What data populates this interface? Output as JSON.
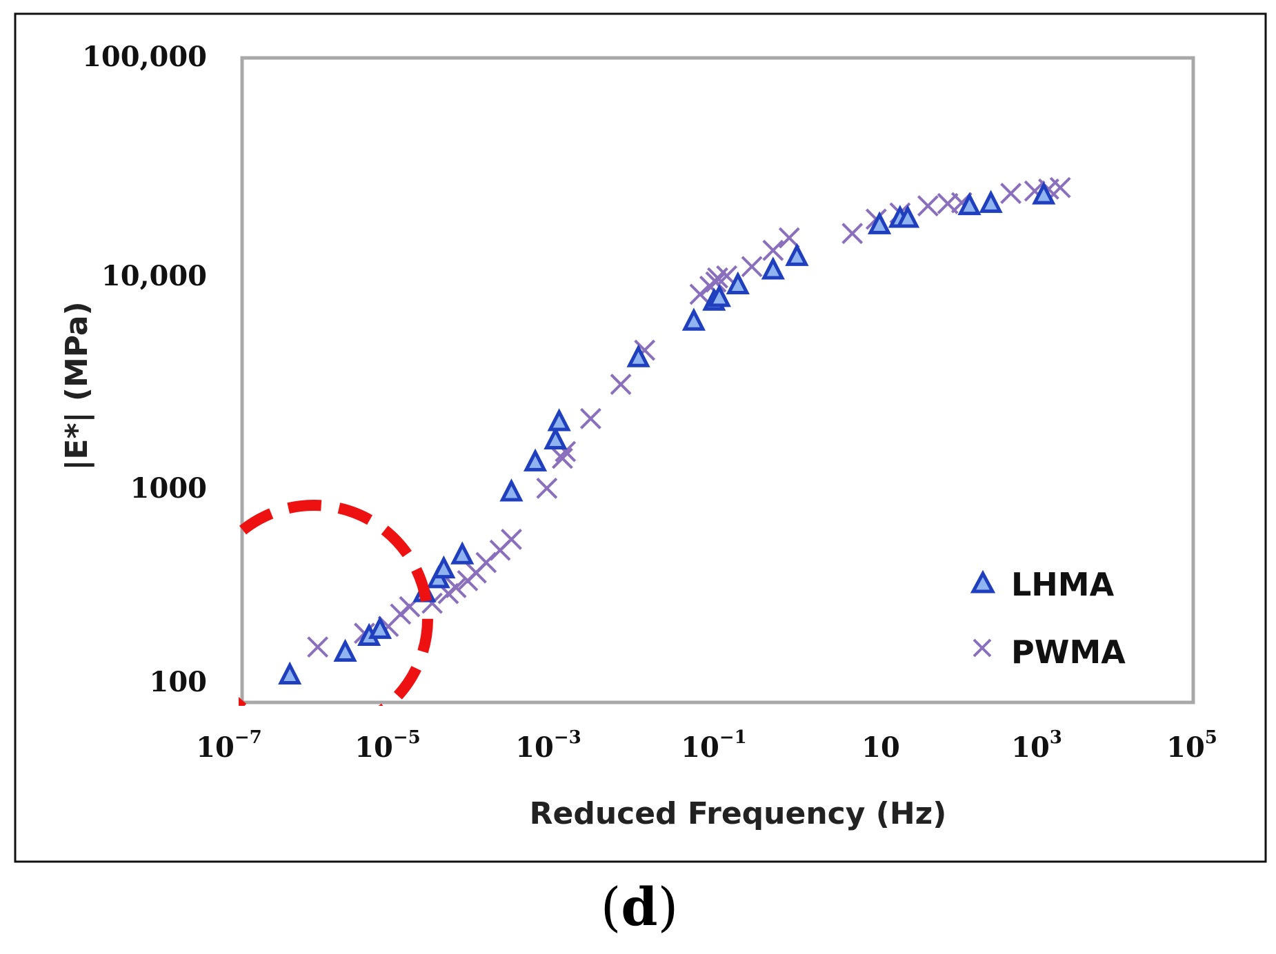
{
  "chart_data": {
    "type": "scatter",
    "title": "",
    "xlabel": "Reduced Frequency (Hz)",
    "ylabel": "|E*| (MPa)",
    "xscale": "log",
    "yscale": "log",
    "xlim": [
      1e-07,
      100000
    ],
    "ylim": [
      85,
      100000
    ],
    "grid": false,
    "legend_position": "bottom-right",
    "x_ticks": [
      {
        "value": 1e-07,
        "base": "10",
        "exp": "−7"
      },
      {
        "value": 1e-05,
        "base": "10",
        "exp": "−5"
      },
      {
        "value": 0.001,
        "base": "10",
        "exp": "−3"
      },
      {
        "value": 0.1,
        "base": "10",
        "exp": "−1"
      },
      {
        "value": 10,
        "base": "10",
        "exp": ""
      },
      {
        "value": 1000,
        "base": "10",
        "exp": "3"
      },
      {
        "value": 100000,
        "base": "10",
        "exp": "5"
      }
    ],
    "y_ticks": [
      {
        "value": 100,
        "label": "100"
      },
      {
        "value": 1000,
        "label": "1000"
      },
      {
        "value": 10000,
        "label": "10,000"
      },
      {
        "value": 100000,
        "label": "100,000"
      }
    ],
    "series": [
      {
        "name": "LHMA",
        "marker": "triangle",
        "color": "#1f3fbf",
        "points": [
          [
            4e-07,
            125
          ],
          [
            2e-06,
            160
          ],
          [
            4e-06,
            190
          ],
          [
            5.5e-06,
            205
          ],
          [
            2e-05,
            305
          ],
          [
            3e-05,
            355
          ],
          [
            3.5e-05,
            395
          ],
          [
            6e-05,
            460
          ],
          [
            0.00025,
            910
          ],
          [
            0.0005,
            1260
          ],
          [
            0.0009,
            1600
          ],
          [
            0.001,
            1950
          ],
          [
            0.01,
            3900
          ],
          [
            0.05,
            5800
          ],
          [
            0.09,
            7200
          ],
          [
            0.105,
            7500
          ],
          [
            0.18,
            8600
          ],
          [
            0.5,
            10100
          ],
          [
            1,
            11700
          ],
          [
            11,
            16500
          ],
          [
            20,
            17700
          ],
          [
            25,
            17700
          ],
          [
            150,
            20300
          ],
          [
            280,
            20800
          ],
          [
            1300,
            22800
          ]
        ]
      },
      {
        "name": "PWMA",
        "marker": "x",
        "color": "#8a6fbd",
        "points": [
          [
            9e-07,
            168
          ],
          [
            3.5e-06,
            195
          ],
          [
            7e-06,
            210
          ],
          [
            1e-05,
            240
          ],
          [
            1.3e-05,
            260
          ],
          [
            2.5e-05,
            270
          ],
          [
            4e-05,
            300
          ],
          [
            5e-05,
            320
          ],
          [
            7e-05,
            345
          ],
          [
            9e-05,
            375
          ],
          [
            0.00012,
            420
          ],
          [
            0.00018,
            480
          ],
          [
            0.00025,
            540
          ],
          [
            0.0007,
            940
          ],
          [
            0.0011,
            1300
          ],
          [
            0.0012,
            1400
          ],
          [
            0.0025,
            2000
          ],
          [
            0.006,
            2900
          ],
          [
            0.012,
            4200
          ],
          [
            0.06,
            7700
          ],
          [
            0.08,
            8400
          ],
          [
            0.095,
            8800
          ],
          [
            0.1,
            9200
          ],
          [
            0.13,
            9400
          ],
          [
            0.27,
            10400
          ],
          [
            0.5,
            12400
          ],
          [
            0.8,
            14200
          ],
          [
            5,
            14900
          ],
          [
            10,
            17400
          ],
          [
            20,
            18600
          ],
          [
            45,
            20100
          ],
          [
            80,
            20600
          ],
          [
            120,
            20800
          ],
          [
            500,
            23000
          ],
          [
            1000,
            23600
          ],
          [
            1500,
            24100
          ],
          [
            2100,
            24500
          ]
        ]
      }
    ],
    "annotations": [
      {
        "type": "dashed-circle",
        "color": "#ee1111",
        "center_x": 1e-06,
        "center_y": 230,
        "description": "highlighted low-frequency region"
      }
    ]
  },
  "panel_label": {
    "open": "(",
    "letter": "d",
    "close": ")"
  }
}
